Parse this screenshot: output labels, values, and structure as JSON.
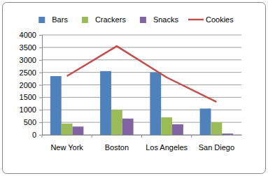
{
  "chart_data": {
    "type": "bar",
    "categories": [
      "New York",
      "Boston",
      "Los Angeles",
      "San Diego"
    ],
    "series": [
      {
        "name": "Bars",
        "type": "bar",
        "color": "#4f81bd",
        "values": [
          2350,
          2550,
          2500,
          1050
        ]
      },
      {
        "name": "Crackers",
        "type": "bar",
        "color": "#9bbb59",
        "values": [
          450,
          1000,
          700,
          500
        ]
      },
      {
        "name": "Snacks",
        "type": "bar",
        "color": "#8064a2",
        "values": [
          330,
          650,
          420,
          50
        ]
      },
      {
        "name": "Cookies",
        "type": "line",
        "color": "#c0504d",
        "values": [
          2350,
          3550,
          2300,
          1320
        ]
      }
    ],
    "ylim": [
      0,
      4000
    ],
    "yticks": [
      0,
      500,
      1000,
      1500,
      2000,
      2500,
      3000,
      3500,
      4000
    ],
    "grid": true,
    "legend": "top"
  }
}
